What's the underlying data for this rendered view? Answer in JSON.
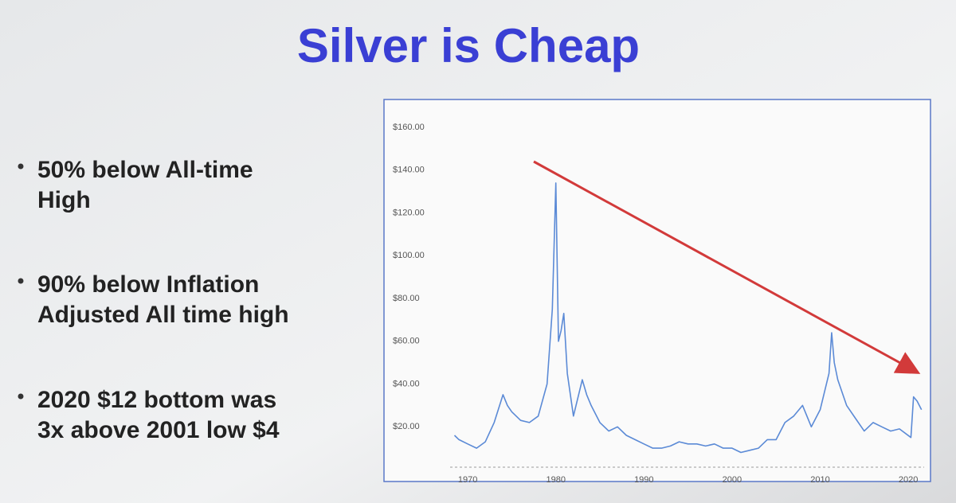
{
  "title": "Silver is Cheap",
  "bullets": [
    [
      "50% below All-time",
      "High"
    ],
    [
      "90% below Inflation",
      "Adjusted All time high"
    ],
    [
      "2020 $12 bottom was",
      "3x above 2001 low $4"
    ]
  ],
  "chart_data": {
    "type": "line",
    "x": [
      1968.5,
      1969,
      1970,
      1971,
      1972,
      1973,
      1974,
      1974.5,
      1975,
      1976,
      1977,
      1978,
      1979,
      1979.6,
      1980,
      1980.3,
      1980.6,
      1980.9,
      1981.3,
      1982,
      1983,
      1983.5,
      1984,
      1985,
      1986,
      1987,
      1988,
      1989,
      1990,
      1991,
      1992,
      1993,
      1994,
      1995,
      1996,
      1997,
      1998,
      1999,
      2000,
      2001,
      2002,
      2003,
      2004,
      2005,
      2006,
      2007,
      2008,
      2009,
      2010,
      2011,
      2011.3,
      2011.6,
      2012,
      2013,
      2014,
      2015,
      2016,
      2017,
      2018,
      2019,
      2020.3,
      2020.6,
      2021,
      2021.5
    ],
    "series": [
      {
        "color": "#5b8ad6",
        "values": [
          16,
          14,
          12,
          10,
          13,
          22,
          35,
          30,
          27,
          23,
          22,
          25,
          40,
          75,
          134,
          60,
          65,
          73,
          45,
          25,
          42,
          35,
          30,
          22,
          18,
          20,
          16,
          14,
          12,
          10,
          10,
          11,
          13,
          12,
          12,
          11,
          12,
          10,
          10,
          8,
          9,
          10,
          14,
          14,
          22,
          25,
          30,
          20,
          28,
          45,
          64,
          50,
          42,
          30,
          24,
          18,
          22,
          20,
          18,
          19,
          15,
          34,
          32,
          28
        ]
      }
    ],
    "xlim": [
      1968,
      2021.8
    ],
    "xticks": [
      1970,
      1980,
      1990,
      2000,
      2010,
      2020
    ],
    "ylim": [
      0,
      160
    ],
    "yticks": [
      {
        "value": 20,
        "label": "$20.00"
      },
      {
        "value": 40,
        "label": "$40.00"
      },
      {
        "value": 60,
        "label": "$60.00"
      },
      {
        "value": 80,
        "label": "$80.00"
      },
      {
        "value": 100,
        "label": "$100.00"
      },
      {
        "value": 120,
        "label": "$120.00"
      },
      {
        "value": 140,
        "label": "$140.00"
      },
      {
        "value": 160,
        "label": "$160.00"
      }
    ]
  }
}
